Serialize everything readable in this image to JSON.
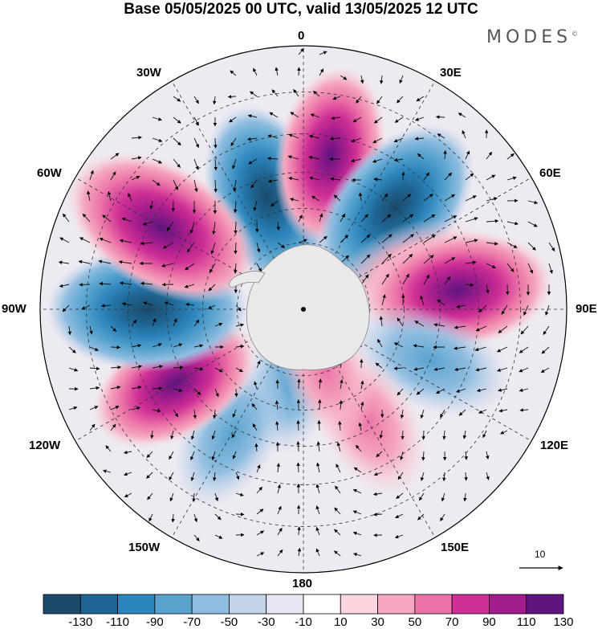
{
  "title": "Base 05/05/2025 00 UTC, valid 13/05/2025 12 UTC",
  "brand": "MODES",
  "brand_mark": "©",
  "longitude_labels": {
    "lon_0": "0",
    "lon_30e": "30E",
    "lon_60e": "60E",
    "lon_90e": "90E",
    "lon_120e": "120E",
    "lon_150e": "150E",
    "lon_180": "180",
    "lon_150w": "150W",
    "lon_120w": "120W",
    "lon_90w": "90W",
    "lon_60w": "60W",
    "lon_30w": "30W"
  },
  "reference_vector": "10",
  "colorbar": {
    "levels": [
      "-130",
      "-110",
      "-90",
      "-70",
      "-50",
      "-30",
      "-10",
      "10",
      "30",
      "50",
      "70",
      "90",
      "110",
      "130"
    ],
    "colors": [
      "#1b4a6b",
      "#1f6593",
      "#2c85bb",
      "#5aa3cf",
      "#8fbde0",
      "#c3d4ea",
      "#e6e6f2",
      "#ffffff",
      "#fad5dc",
      "#f5a8bf",
      "#ec74a8",
      "#cf2f95",
      "#a11c8c",
      "#5e1580"
    ]
  },
  "anomalies": [
    {
      "lon": -18,
      "lat": -55,
      "value": -100
    },
    {
      "lon": 10,
      "lat": -45,
      "value": 80
    },
    {
      "lon": 42,
      "lat": -50,
      "value": -110
    },
    {
      "lon": 72,
      "lat": -55,
      "value": 60
    },
    {
      "lon": 83,
      "lat": -45,
      "value": 100
    },
    {
      "lon": 112,
      "lat": -50,
      "value": -60
    },
    {
      "lon": 150,
      "lat": -52,
      "value": 55
    },
    {
      "lon": -170,
      "lat": -68,
      "value": -35
    },
    {
      "lon": -150,
      "lat": -48,
      "value": -45
    },
    {
      "lon": -120,
      "lat": -47,
      "value": 80
    },
    {
      "lon": -90,
      "lat": -45,
      "value": -120
    },
    {
      "lon": -60,
      "lat": -43,
      "value": 125
    },
    {
      "lon": 160,
      "lat": -70,
      "value": 25
    }
  ]
}
